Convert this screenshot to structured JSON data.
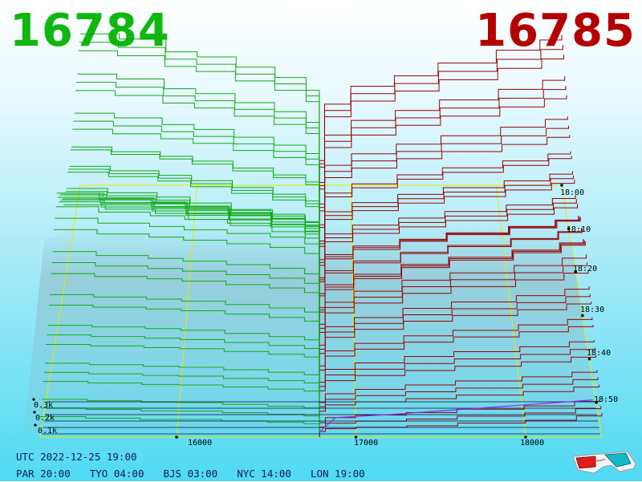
{
  "header": {
    "best_bid": "16784",
    "best_ask": "16785",
    "bid_color": "#0eb80e",
    "ask_color": "#b40000"
  },
  "footer": {
    "utc": "UTC 2022-12-25 19:00",
    "par": "PAR 20:00",
    "tyo": "TYO 04:00",
    "bjs": "BJS 03:00",
    "nyc": "NYC 14:00",
    "lon": "LON 19:00"
  },
  "icons": [
    "3d-glasses-icon"
  ],
  "chart_data": {
    "type": "3d-depth",
    "title": "",
    "x_axis": {
      "ticks": [
        16000,
        17000,
        18000
      ],
      "range": [
        15250,
        18450
      ]
    },
    "time_axis": {
      "ticks": [
        "18:00",
        "18:10",
        "18:20",
        "18:30",
        "18:40",
        "18:50"
      ]
    },
    "volume_axis": {
      "ticks": [
        "0.1k",
        "0.2k",
        "0.3k"
      ]
    },
    "mid_price": 16784.5,
    "colors": {
      "bid": "#11aa11",
      "ask": "#990000",
      "grid": "#e8e800",
      "base": "#0d1030",
      "current": "#8a2bef"
    },
    "sample_prices": [
      15250,
      15500,
      15800,
      16000,
      16250,
      16500,
      16700,
      16784,
      16785,
      16820,
      17000,
      17300,
      17600,
      18000,
      18300,
      18450
    ],
    "snapshots": [
      {
        "time": "18:00",
        "bid": [
          0.62,
          0.6,
          0.55,
          0.53,
          0.49,
          0.45,
          0.4,
          0.12
        ],
        "ask": [
          0.12,
          0.34,
          0.41,
          0.45,
          0.5,
          0.55,
          0.59,
          0.61
        ]
      },
      {
        "time": "18:10",
        "bid": [
          0.42,
          0.4,
          0.38,
          0.36,
          0.33,
          0.3,
          0.27,
          0.08
        ],
        "ask": [
          0.08,
          0.22,
          0.26,
          0.3,
          0.33,
          0.36,
          0.39,
          0.4
        ]
      },
      {
        "time": "18:20",
        "bid": [
          0.4,
          0.38,
          0.36,
          0.33,
          0.3,
          0.27,
          0.24,
          0.07
        ],
        "ask": [
          0.07,
          0.18,
          0.22,
          0.25,
          0.28,
          0.31,
          0.34,
          0.36
        ]
      },
      {
        "time": "18:30",
        "bid": [
          0.75,
          0.72,
          0.7,
          0.68,
          0.66,
          0.64,
          0.6,
          0.1
        ],
        "ask": [
          0.1,
          0.22,
          0.28,
          0.34,
          0.38,
          0.42,
          0.46,
          0.48
        ]
      },
      {
        "time": "18:40",
        "bid": [
          0.42,
          0.41,
          0.4,
          0.39,
          0.37,
          0.35,
          0.33,
          0.06
        ],
        "ask": [
          0.06,
          0.14,
          0.18,
          0.22,
          0.25,
          0.28,
          0.31,
          0.32
        ]
      },
      {
        "time": "18:50",
        "bid": [
          0.12,
          0.11,
          0.1,
          0.1,
          0.09,
          0.08,
          0.07,
          0.02
        ],
        "ask": [
          0.02,
          0.04,
          0.05,
          0.06,
          0.08,
          0.1,
          0.13,
          0.15
        ]
      }
    ]
  }
}
